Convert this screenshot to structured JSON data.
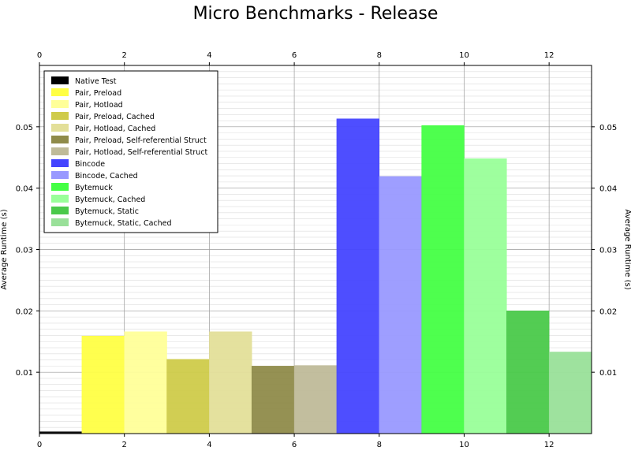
{
  "chart_data": {
    "type": "bar",
    "title": "Micro Benchmarks - Release",
    "xlabel": "",
    "ylabel": "Average Runtime (s)",
    "xlim": [
      0,
      13
    ],
    "ylim": [
      0,
      0.06
    ],
    "xticks": [
      0,
      2,
      4,
      6,
      8,
      10,
      12
    ],
    "yticks": [
      0.01,
      0.02,
      0.03,
      0.04,
      0.05
    ],
    "grid": true,
    "legend_position": "top-left",
    "series": [
      {
        "name": "Native Test",
        "value": 0.0003,
        "color": "#000000"
      },
      {
        "name": "Pair, Preload",
        "value": 0.0159,
        "color": "#ffff44"
      },
      {
        "name": "Pair, Hotload",
        "value": 0.0166,
        "color": "#ffff99"
      },
      {
        "name": "Pair, Preload, Cached",
        "value": 0.0121,
        "color": "#cfcb4a"
      },
      {
        "name": "Pair, Hotload, Cached",
        "value": 0.0166,
        "color": "#e3df99"
      },
      {
        "name": "Pair, Preload, Self-referential Struct",
        "value": 0.011,
        "color": "#8f8b4a"
      },
      {
        "name": "Pair, Hotload, Self-referential Struct",
        "value": 0.0111,
        "color": "#bfbb99"
      },
      {
        "name": "Bincode",
        "value": 0.0513,
        "color": "#4444ff"
      },
      {
        "name": "Bincode, Cached",
        "value": 0.0419,
        "color": "#9999ff"
      },
      {
        "name": "Bytemuck",
        "value": 0.0502,
        "color": "#44ff44"
      },
      {
        "name": "Bytemuck, Cached",
        "value": 0.0448,
        "color": "#99ff99"
      },
      {
        "name": "Bytemuck, Static",
        "value": 0.02,
        "color": "#4ac94a"
      },
      {
        "name": "Bytemuck, Static, Cached",
        "value": 0.0133,
        "color": "#99e099"
      }
    ]
  }
}
